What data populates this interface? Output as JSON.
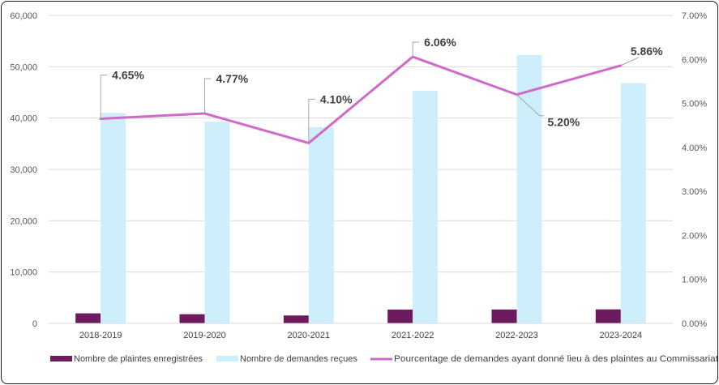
{
  "chart_data": {
    "type": "bar",
    "categories": [
      "2018-2019",
      "2019-2020",
      "2020-2021",
      "2021-2022",
      "2022-2023",
      "2023-2024"
    ],
    "series": [
      {
        "name": "Nombre de plaintes enregistrées",
        "type": "bar",
        "axis": "left",
        "color": "#6d1a5e",
        "values": [
          1960,
          1790,
          1540,
          2700,
          2710,
          2730
        ]
      },
      {
        "name": "Nombre de demandes reçues",
        "type": "bar",
        "axis": "left",
        "color": "#cdeefa",
        "values": [
          41000,
          39300,
          38200,
          45300,
          52300,
          46800
        ]
      },
      {
        "name": "Pourcentage de demandes ayant donné lieu à des plaintes au Commissariat",
        "type": "line",
        "axis": "right",
        "color": "#d06ac9",
        "values": [
          4.65,
          4.77,
          4.1,
          6.06,
          5.2,
          5.86
        ],
        "labels": [
          "4.65%",
          "4.77%",
          "4.10%",
          "6.06%",
          "5.20%",
          "5.86%"
        ]
      }
    ],
    "y_left": {
      "ylim": [
        0,
        60000
      ],
      "ticks": [
        "0",
        "10,000",
        "20,000",
        "30,000",
        "40,000",
        "50,000",
        "60,000"
      ]
    },
    "y_right": {
      "ylim": [
        0,
        7
      ],
      "ticks": [
        "0.00%",
        "1.00%",
        "2.00%",
        "3.00%",
        "4.00%",
        "5.00%",
        "6.00%",
        "7.00%"
      ]
    },
    "grid": true,
    "legend_position": "bottom"
  }
}
